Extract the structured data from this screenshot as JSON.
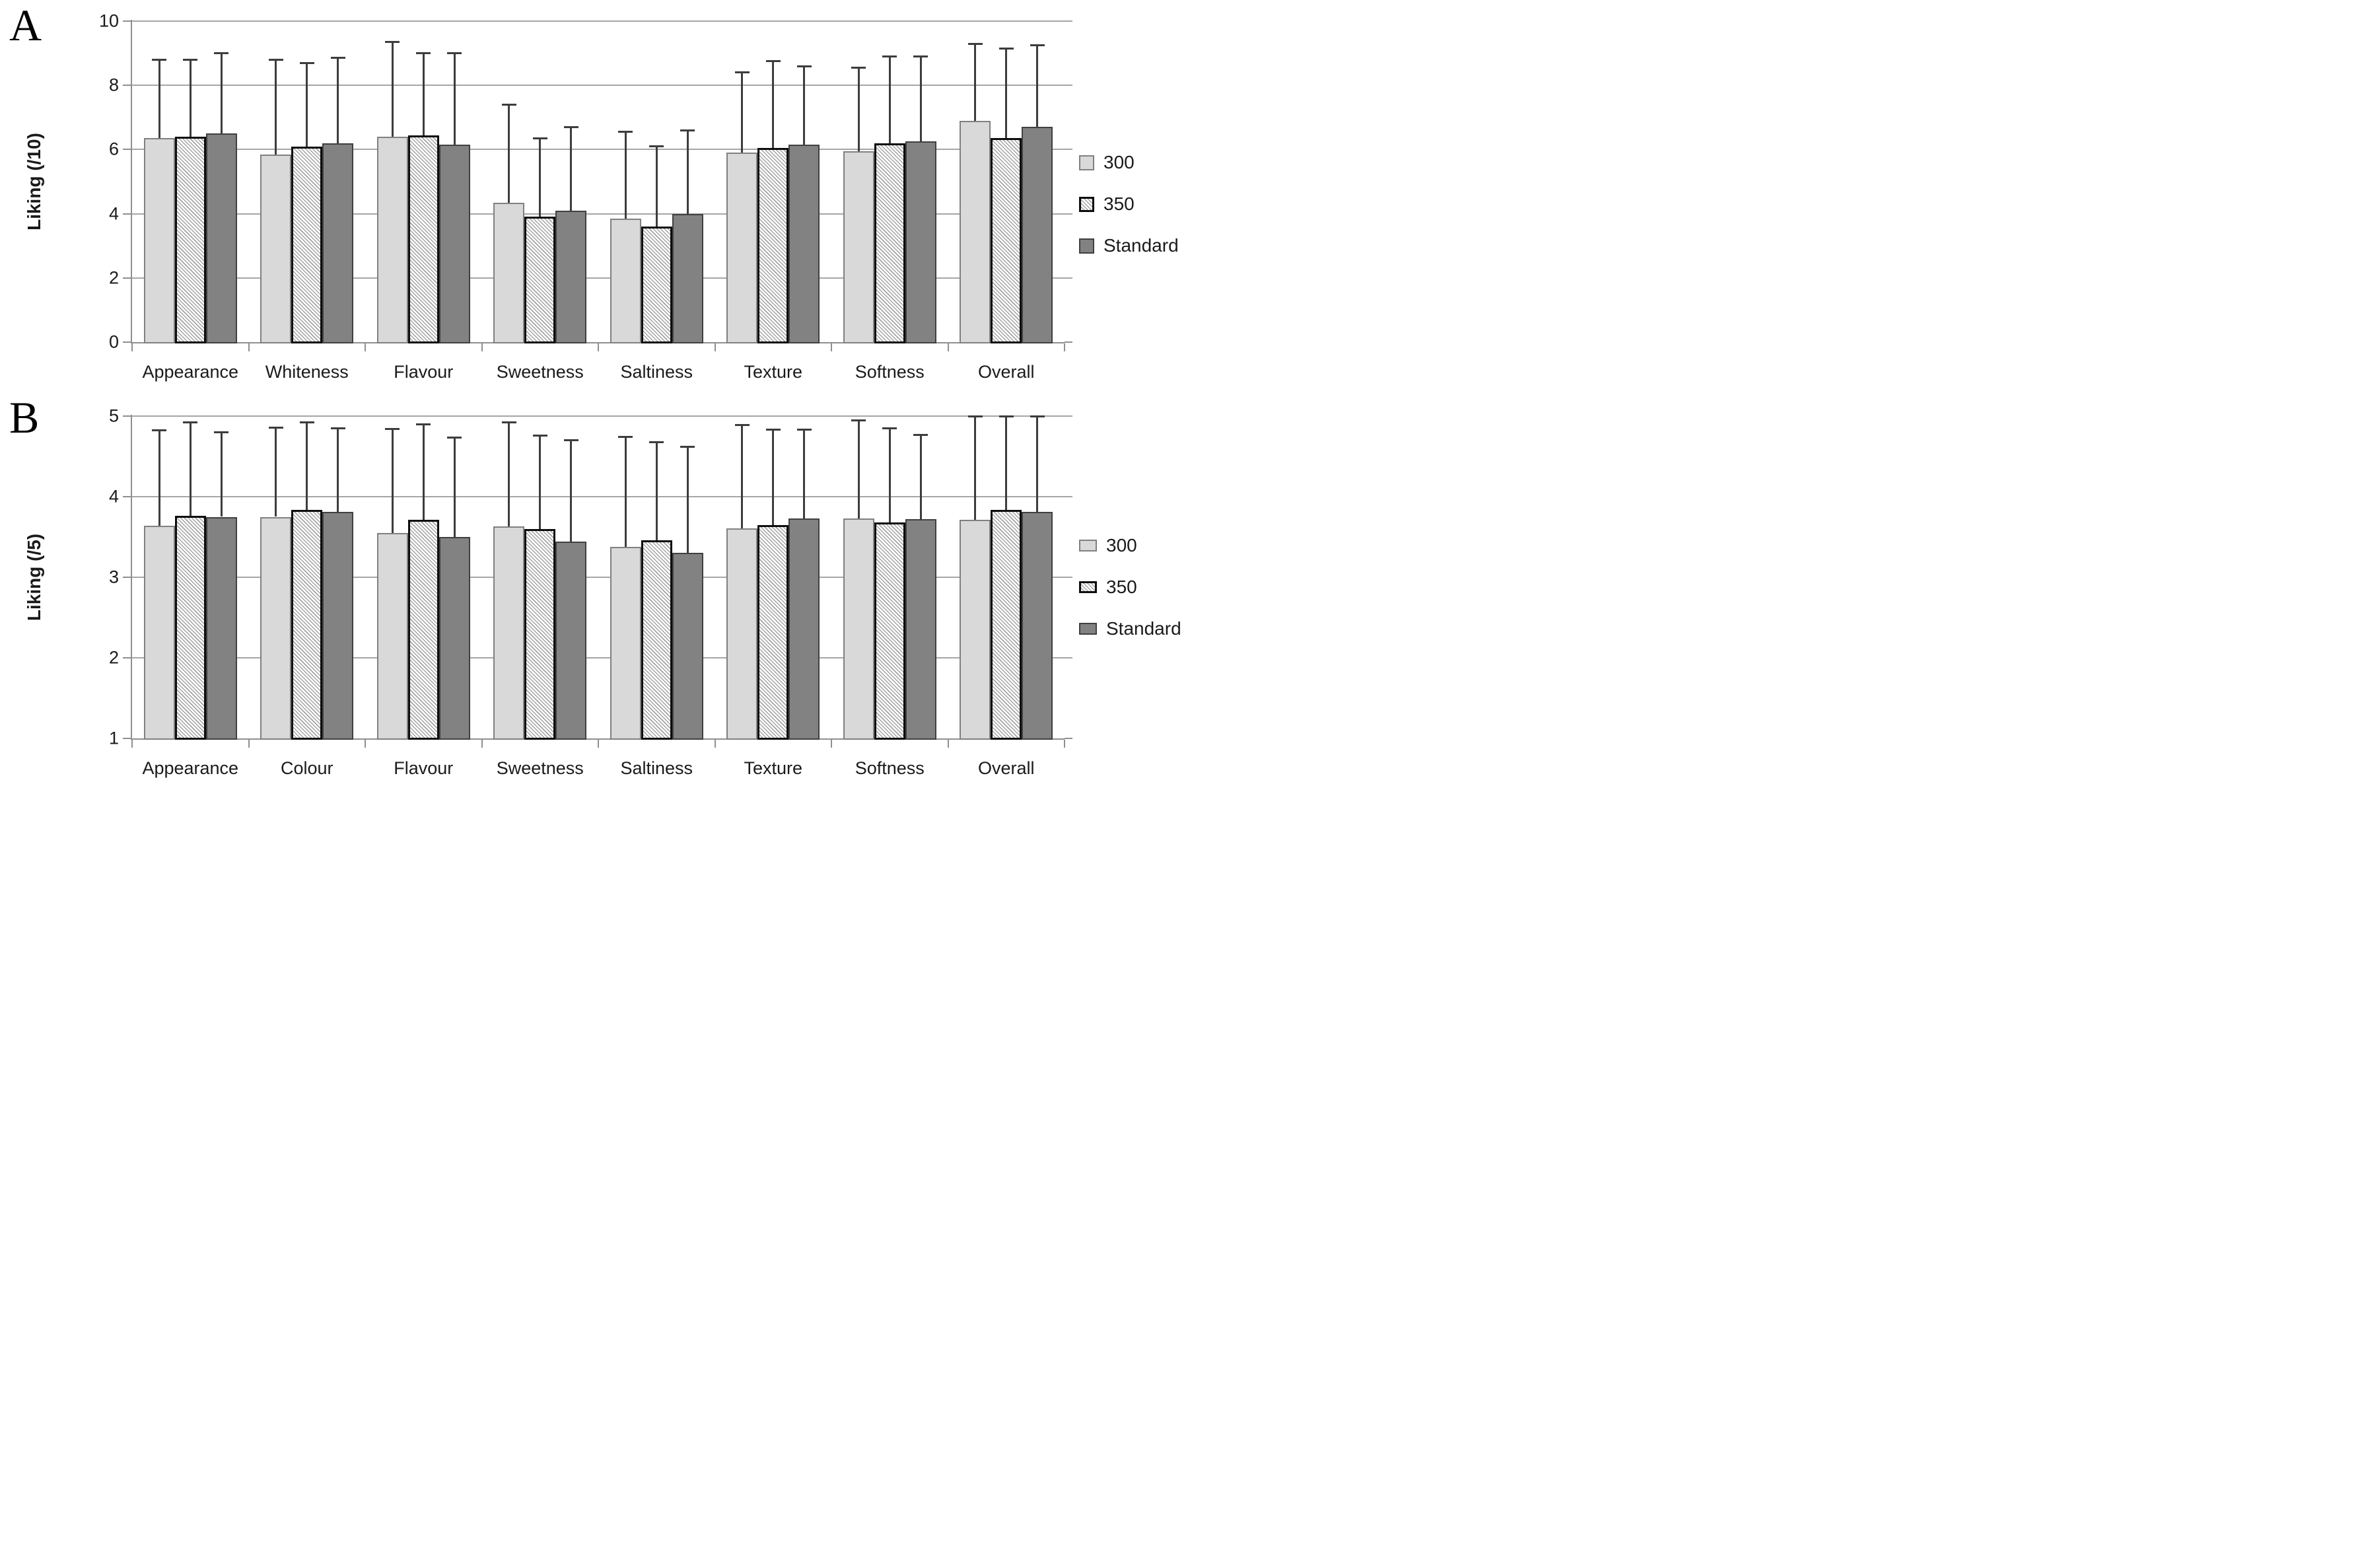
{
  "figure": {
    "panels": [
      {
        "label": "A"
      },
      {
        "label": "B"
      }
    ],
    "colors": {
      "series_300_fill": "#d9d9d9",
      "series_300_border": "#808080",
      "series_350_fill": "#ffffff",
      "series_350_hatch": "#a3a3a3",
      "series_350_border": "#0d0d0d",
      "series_standard_fill": "#828282",
      "series_standard_border": "#404040",
      "gridline": "#a6a6a6",
      "axis": "#8f8f8f",
      "error_bar": "#3d3d3d",
      "text": "#1a1a1a"
    }
  },
  "chart_data": [
    {
      "type": "bar",
      "panel": "A",
      "ylabel": "Liking (/10)",
      "ylim": [
        0,
        10
      ],
      "yticks": [
        0,
        2,
        4,
        6,
        8,
        10
      ],
      "grid": true,
      "legend_position": "right",
      "error_bars": "plus_direction",
      "categories": [
        "Appearance",
        "Whiteness",
        "Flavour",
        "Sweetness",
        "Saltiness",
        "Texture",
        "Softness",
        "Overall"
      ],
      "series": [
        {
          "name": "300",
          "style": "light",
          "values": [
            6.35,
            5.85,
            6.4,
            4.35,
            3.85,
            5.9,
            5.95,
            6.9
          ],
          "error_up": [
            2.45,
            2.95,
            2.95,
            3.05,
            2.7,
            2.5,
            2.6,
            2.4
          ]
        },
        {
          "name": "350",
          "style": "hatched",
          "values": [
            6.4,
            6.1,
            6.45,
            3.9,
            3.6,
            6.05,
            6.2,
            6.35
          ],
          "error_up": [
            2.4,
            2.6,
            2.55,
            2.45,
            2.5,
            2.7,
            2.7,
            2.8
          ]
        },
        {
          "name": "Standard",
          "style": "dark",
          "values": [
            6.5,
            6.2,
            6.15,
            4.1,
            4.0,
            6.15,
            6.25,
            6.7
          ],
          "error_up": [
            2.5,
            2.65,
            2.85,
            2.6,
            2.6,
            2.45,
            2.65,
            2.55
          ]
        }
      ]
    },
    {
      "type": "bar",
      "panel": "B",
      "ylabel": "Liking (/5)",
      "ylim": [
        1,
        5
      ],
      "yticks": [
        1,
        2,
        3,
        4,
        5
      ],
      "grid": true,
      "legend_position": "right",
      "error_bars": "plus_direction",
      "categories": [
        "Appearance",
        "Colour",
        "Flavour",
        "Sweetness",
        "Saltiness",
        "Texture",
        "Softness",
        "Overall"
      ],
      "series": [
        {
          "name": "300",
          "style": "light",
          "values": [
            3.64,
            3.75,
            3.55,
            3.63,
            3.38,
            3.61,
            3.73,
            3.71
          ],
          "error_up": [
            1.18,
            1.11,
            1.29,
            1.29,
            1.36,
            1.28,
            1.22,
            1.29
          ]
        },
        {
          "name": "350",
          "style": "hatched",
          "values": [
            3.76,
            3.84,
            3.71,
            3.6,
            3.46,
            3.65,
            3.68,
            3.84
          ],
          "error_up": [
            1.16,
            1.08,
            1.19,
            1.16,
            1.22,
            1.18,
            1.17,
            1.16
          ]
        },
        {
          "name": "Standard",
          "style": "dark",
          "values": [
            3.75,
            3.81,
            3.5,
            3.44,
            3.3,
            3.73,
            3.72,
            3.81
          ],
          "error_up": [
            1.05,
            1.04,
            1.23,
            1.26,
            1.32,
            1.1,
            1.05,
            1.19
          ]
        }
      ]
    }
  ]
}
